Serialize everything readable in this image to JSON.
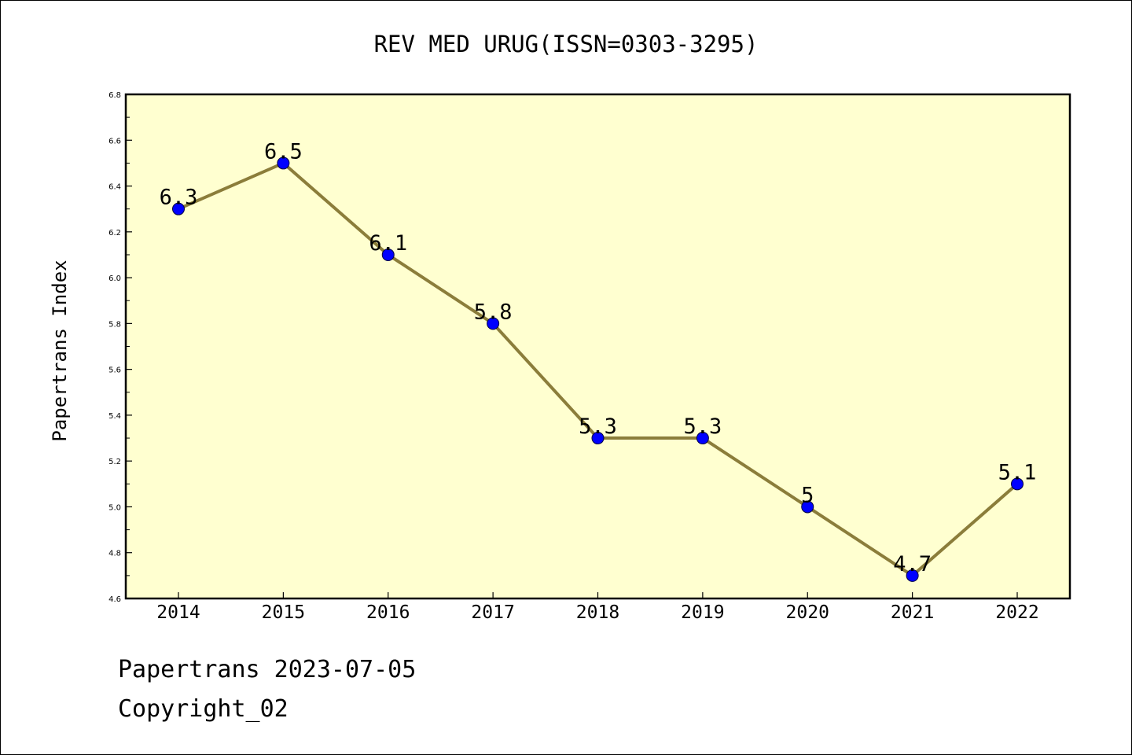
{
  "chart_data": {
    "type": "line",
    "title": "REV MED URUG(ISSN=0303-3295)",
    "xlabel": "",
    "ylabel": "Papertrans Index",
    "categories": [
      "2014",
      "2015",
      "2016",
      "2017",
      "2018",
      "2019",
      "2020",
      "2021",
      "2022"
    ],
    "values": [
      6.3,
      6.5,
      6.1,
      5.8,
      5.3,
      5.3,
      5.0,
      4.7,
      5.1
    ],
    "data_labels": [
      "6.3",
      "6.5",
      "6.1",
      "5.8",
      "5.3",
      "5.3",
      "5",
      "4.7",
      "5.1"
    ],
    "ylim": [
      4.6,
      6.8
    ],
    "yticks": [
      "4.6",
      "4.8",
      "5.0",
      "5.2",
      "5.4",
      "5.6",
      "5.8",
      "6.0",
      "6.2",
      "6.4",
      "6.6",
      "6.8"
    ],
    "grid": false,
    "colors": {
      "plot_background": "#ffffd0",
      "line": "#8b7d3a",
      "marker": "#0000ff",
      "axis": "#000000"
    }
  },
  "footer": {
    "line1": "Papertrans 2023-07-05",
    "line2": "Copyright_02"
  }
}
